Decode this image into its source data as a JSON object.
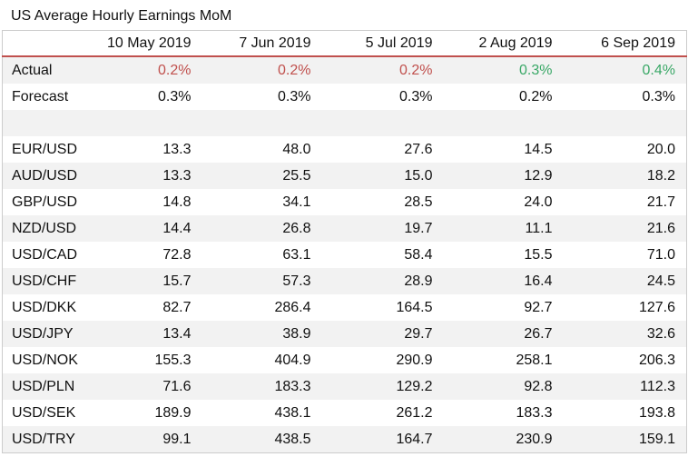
{
  "title": "US Average Hourly Earnings MoM",
  "columns": [
    "10 May 2019",
    "7 Jun 2019",
    "5 Jul 2019",
    "2 Aug 2019",
    "6 Sep 2019"
  ],
  "colors": {
    "negative": "#c0504d",
    "positive": "#3aa867"
  },
  "actual": {
    "label": "Actual",
    "values": [
      "0.2%",
      "0.2%",
      "0.2%",
      "0.3%",
      "0.4%"
    ],
    "status": [
      "negative",
      "negative",
      "negative",
      "positive",
      "positive"
    ]
  },
  "forecast": {
    "label": "Forecast",
    "values": [
      "0.3%",
      "0.3%",
      "0.3%",
      "0.2%",
      "0.3%"
    ]
  },
  "pairs": [
    {
      "label": "EUR/USD",
      "values": [
        "13.3",
        "48.0",
        "27.6",
        "14.5",
        "20.0"
      ]
    },
    {
      "label": "AUD/USD",
      "values": [
        "13.3",
        "25.5",
        "15.0",
        "12.9",
        "18.2"
      ]
    },
    {
      "label": "GBP/USD",
      "values": [
        "14.8",
        "34.1",
        "28.5",
        "24.0",
        "21.7"
      ]
    },
    {
      "label": "NZD/USD",
      "values": [
        "14.4",
        "26.8",
        "19.7",
        "11.1",
        "21.6"
      ]
    },
    {
      "label": "USD/CAD",
      "values": [
        "72.8",
        "63.1",
        "58.4",
        "15.5",
        "71.0"
      ]
    },
    {
      "label": "USD/CHF",
      "values": [
        "15.7",
        "57.3",
        "28.9",
        "16.4",
        "24.5"
      ]
    },
    {
      "label": "USD/DKK",
      "values": [
        "82.7",
        "286.4",
        "164.5",
        "92.7",
        "127.6"
      ]
    },
    {
      "label": "USD/JPY",
      "values": [
        "13.4",
        "38.9",
        "29.7",
        "26.7",
        "32.6"
      ]
    },
    {
      "label": "USD/NOK",
      "values": [
        "155.3",
        "404.9",
        "290.9",
        "258.1",
        "206.3"
      ]
    },
    {
      "label": "USD/PLN",
      "values": [
        "71.6",
        "183.3",
        "129.2",
        "92.8",
        "112.3"
      ]
    },
    {
      "label": "USD/SEK",
      "values": [
        "189.9",
        "438.1",
        "261.2",
        "183.3",
        "193.8"
      ]
    },
    {
      "label": "USD/TRY",
      "values": [
        "99.1",
        "438.5",
        "164.7",
        "230.9",
        "159.1"
      ]
    }
  ]
}
